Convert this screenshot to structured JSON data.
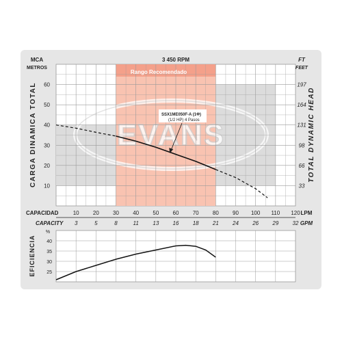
{
  "chart_data": [
    {
      "type": "line",
      "title": "3 450 RPM",
      "left_unit": "MCA",
      "left_unit_sub": "METROS",
      "right_unit": "FT",
      "right_unit_sub": "FEET",
      "ylabel": "CARGA DINAMICA TOTAL",
      "ylabel_right": "TOTAL DYNAMIC HEAD",
      "yticks": [
        "10",
        "20",
        "30",
        "40",
        "50",
        "60"
      ],
      "yticks_right": [
        "33",
        "66",
        "98",
        "131",
        "164",
        "197"
      ],
      "ylim": [
        0,
        70
      ],
      "xlim": [
        0,
        120
      ],
      "xlabel_lpm": "CAPACIDAD",
      "xlabel_lpm_unit": "LPM",
      "xticks_lpm": [
        "10",
        "20",
        "30",
        "40",
        "50",
        "60",
        "70",
        "80",
        "90",
        "100",
        "110",
        "120"
      ],
      "xlabel_gpm": "CAPACITY",
      "xlabel_gpm_unit": "GPM",
      "xticks_gpm": [
        "3",
        "5",
        "8",
        "11",
        "13",
        "16",
        "18",
        "21",
        "24",
        "26",
        "29",
        "32"
      ],
      "recommended_range": {
        "label": "Rango Recomendado",
        "from": 30,
        "to": 80
      },
      "watermark": "EVANS",
      "annotation": {
        "model": "SSX1ME050F-A (1Φ)",
        "spec": "(1/2 HP) 4 Pasos",
        "points_to": [
          57,
          26
        ]
      },
      "series": [
        {
          "style": "dashed",
          "x": [
            0,
            10,
            20,
            30
          ],
          "y": [
            40,
            38.4,
            36.4,
            34.5
          ]
        },
        {
          "style": "solid",
          "x": [
            30,
            40,
            50,
            60,
            70,
            80
          ],
          "y": [
            34.5,
            32,
            29,
            25.5,
            22,
            18
          ]
        },
        {
          "style": "dashed",
          "x": [
            80,
            90,
            100,
            106
          ],
          "y": [
            18,
            14,
            8.5,
            4
          ]
        }
      ],
      "colors": {
        "recommended": "#f9c3b1",
        "background_band": "#dcdcdc",
        "curve": "#111111",
        "watermark": "#d0d0d0"
      }
    },
    {
      "type": "line",
      "ylabel": "EFICIENCIA",
      "yunit": "%",
      "yticks": [
        "25",
        "30",
        "35",
        "40"
      ],
      "ylim": [
        20,
        45
      ],
      "series": [
        {
          "style": "solid",
          "x": [
            0,
            10,
            20,
            30,
            40,
            50,
            60,
            65,
            70,
            75,
            80
          ],
          "y": [
            21,
            25,
            28,
            31,
            33.5,
            35.5,
            37.5,
            37.8,
            37.3,
            35.5,
            32
          ]
        }
      ]
    }
  ]
}
